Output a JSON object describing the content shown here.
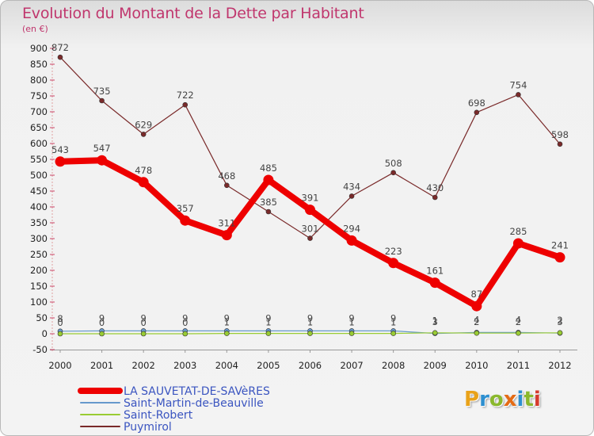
{
  "chart_data": {
    "type": "line",
    "title": "Evolution du Montant de la Dette par Habitant",
    "ylabel": "(en €)",
    "xlabel": "",
    "x": [
      "2000",
      "2001",
      "2002",
      "2003",
      "2004",
      "2005",
      "2006",
      "2007",
      "2008",
      "2009",
      "2010",
      "2011",
      "2012"
    ],
    "ylim": [
      -50,
      900
    ],
    "ytick_step": 50,
    "grid": false,
    "legend_position": "bottom-left",
    "series": [
      {
        "name": "LA SAUVETAT-DE-SAVèRES",
        "color": "#ee0000",
        "emphasis": true,
        "values": [
          543,
          547,
          478,
          357,
          311,
          485,
          391,
          294,
          223,
          161,
          87,
          285,
          241
        ],
        "labels": [
          "543",
          "547",
          "478",
          "357",
          "311",
          "485",
          "391",
          "294",
          "223",
          "161",
          "87",
          "285",
          "241"
        ]
      },
      {
        "name": "Saint-Martin-de-Beauville",
        "color": "#6699cc",
        "emphasis": false,
        "values": [
          8,
          9,
          9,
          9,
          9,
          9,
          9,
          9,
          9,
          1,
          4,
          4,
          2
        ],
        "labels": [
          "8",
          "9",
          "9",
          "9",
          "9",
          "9",
          "9",
          "9",
          "9",
          "1",
          "4",
          "4",
          "2"
        ]
      },
      {
        "name": "Saint-Robert",
        "color": "#99cc33",
        "emphasis": false,
        "values": [
          0,
          0,
          0,
          0,
          1,
          1,
          1,
          1,
          1,
          3,
          2,
          2,
          3
        ],
        "labels": [
          "0",
          "0",
          "0",
          "0",
          "1",
          "1",
          "1",
          "1",
          "1",
          "3",
          "2",
          "2",
          "3"
        ]
      },
      {
        "name": "Puymirol",
        "color": "#7a2a2a",
        "emphasis": false,
        "values": [
          872,
          735,
          629,
          722,
          468,
          385,
          301,
          434,
          508,
          430,
          698,
          754,
          598
        ],
        "labels": [
          "872",
          "735",
          "629",
          "722",
          "468",
          "385",
          "301",
          "434",
          "508",
          "430",
          "698",
          "754",
          "598"
        ]
      }
    ]
  },
  "logo": {
    "letters": [
      "P",
      "r",
      "o",
      "x",
      "i",
      "t",
      "i"
    ],
    "colors": [
      "#e9a219",
      "#2d8fd0",
      "#8ab82d",
      "#e46b14",
      "#2d8fd0",
      "#8ab82d",
      "#d63a2e"
    ]
  }
}
